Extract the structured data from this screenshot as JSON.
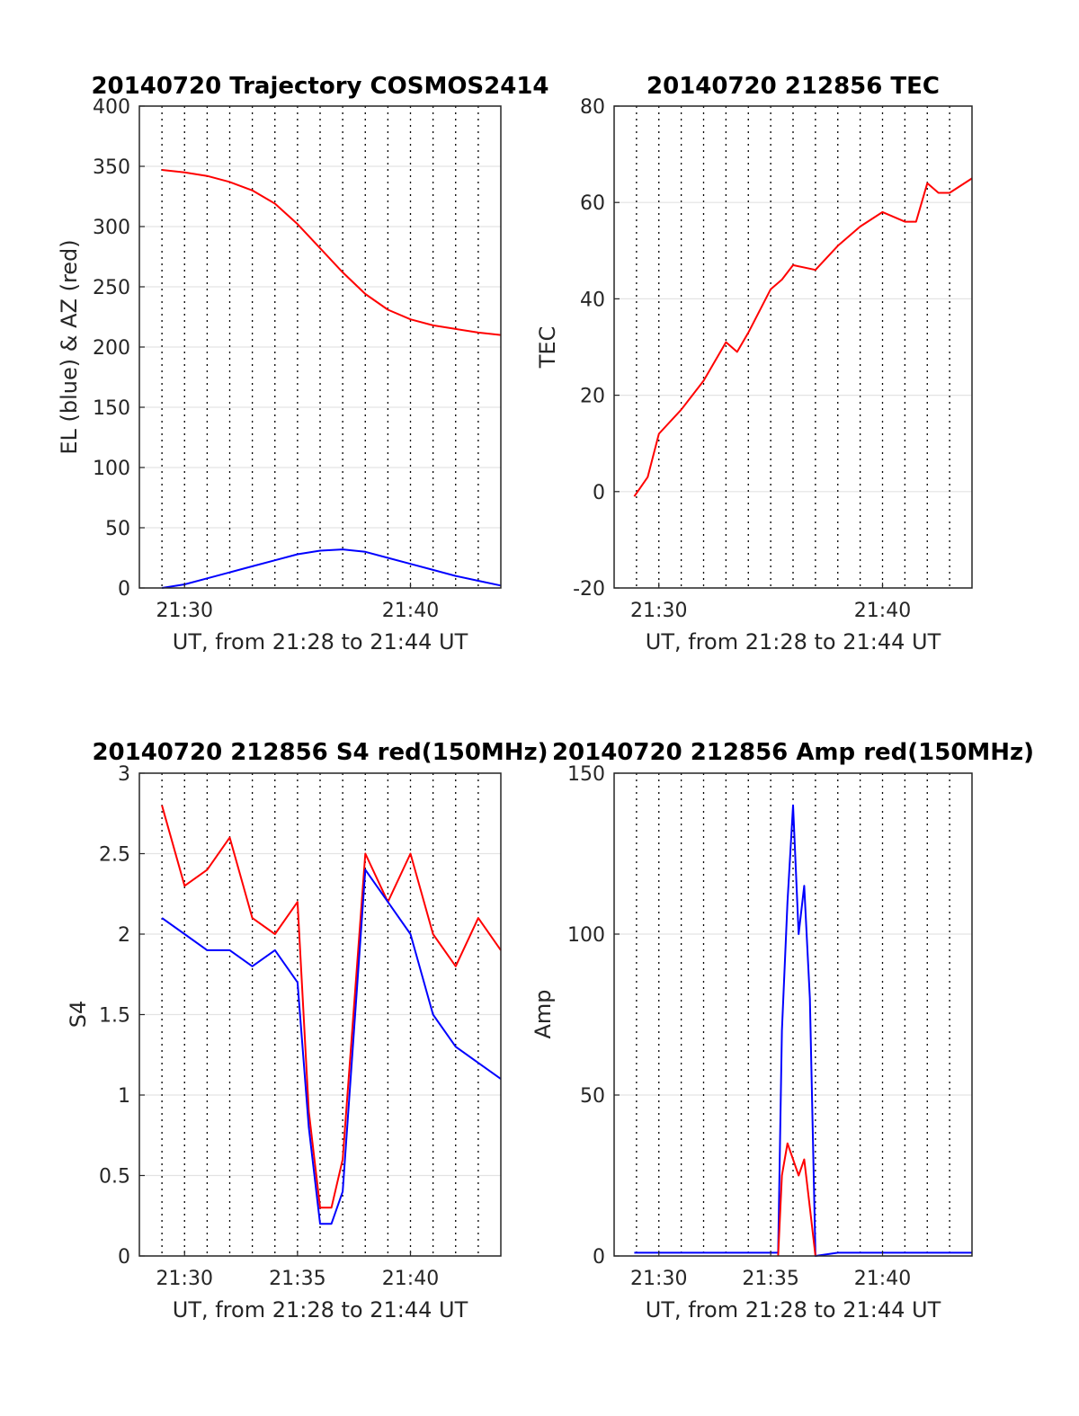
{
  "chart_data": [
    {
      "type": "line",
      "title": "20140720 Trajectory COSMOS2414",
      "xlabel": "UT, from 21:28 to 21:44 UT",
      "ylabel": "EL (blue) & AZ (red)",
      "xlim": [
        "21:28",
        "21:44"
      ],
      "ylim": [
        0,
        400
      ],
      "xticks": [
        "21:30",
        "21:40"
      ],
      "yticks": [
        0,
        50,
        100,
        150,
        200,
        250,
        300,
        350,
        400
      ],
      "grid": true,
      "series": [
        {
          "color": "#ff0000",
          "x": [
            "21:29",
            "21:30",
            "21:31",
            "21:32",
            "21:33",
            "21:34",
            "21:35",
            "21:36",
            "21:37",
            "21:38",
            "21:39",
            "21:40",
            "21:41",
            "21:42",
            "21:43",
            "21:44"
          ],
          "y": [
            347,
            345,
            342,
            337,
            330,
            319,
            302,
            282,
            262,
            244,
            231,
            223,
            218,
            215,
            212,
            210
          ]
        },
        {
          "color": "#0000ff",
          "x": [
            "21:29",
            "21:30",
            "21:31",
            "21:32",
            "21:33",
            "21:34",
            "21:35",
            "21:36",
            "21:37",
            "21:38",
            "21:39",
            "21:40",
            "21:41",
            "21:42",
            "21:43",
            "21:44"
          ],
          "y": [
            0,
            3,
            8,
            13,
            18,
            23,
            28,
            31,
            32,
            30,
            25,
            20,
            15,
            10,
            6,
            2
          ]
        }
      ]
    },
    {
      "type": "line",
      "title": "20140720 212856 TEC",
      "xlabel": "UT, from 21:28 to 21:44 UT",
      "ylabel": "TEC",
      "xlim": [
        "21:28",
        "21:44"
      ],
      "ylim": [
        -20,
        80
      ],
      "xticks": [
        "21:30",
        "21:40"
      ],
      "yticks": [
        -20,
        0,
        20,
        40,
        60,
        80
      ],
      "grid": true,
      "series": [
        {
          "color": "#ff0000",
          "x": [
            "21:28:54",
            "21:29:30",
            "21:30",
            "21:31",
            "21:32",
            "21:33",
            "21:33:30",
            "21:34",
            "21:35",
            "21:35:30",
            "21:36",
            "21:37",
            "21:38",
            "21:39",
            "21:40",
            "21:41",
            "21:41:30",
            "21:42",
            "21:42:30",
            "21:43",
            "21:44"
          ],
          "y": [
            -1,
            3,
            12,
            17,
            23,
            31,
            29,
            33,
            42,
            44,
            47,
            46,
            51,
            55,
            58,
            56,
            56,
            64,
            62,
            62,
            65
          ]
        }
      ]
    },
    {
      "type": "line",
      "title": "20140720 212856 S4 red(150MHz)",
      "xlabel": "UT, from 21:28 to 21:44 UT",
      "ylabel": "S4",
      "xlim": [
        "21:28",
        "21:44"
      ],
      "ylim": [
        0,
        3
      ],
      "xticks": [
        "21:30",
        "21:35",
        "21:40"
      ],
      "yticks": [
        0,
        0.5,
        1,
        1.5,
        2,
        2.5,
        3
      ],
      "grid": true,
      "series": [
        {
          "color": "#ff0000",
          "x": [
            "21:29",
            "21:30",
            "21:31",
            "21:32",
            "21:33",
            "21:34",
            "21:35",
            "21:35:30",
            "21:36",
            "21:36:30",
            "21:37",
            "21:38",
            "21:39",
            "21:40",
            "21:41",
            "21:42",
            "21:43",
            "21:44"
          ],
          "y": [
            2.8,
            2.3,
            2.4,
            2.6,
            2.1,
            2.0,
            2.2,
            0.9,
            0.3,
            0.3,
            0.6,
            2.5,
            2.2,
            2.5,
            2.0,
            1.8,
            2.1,
            1.9
          ]
        },
        {
          "color": "#0000ff",
          "x": [
            "21:29",
            "21:30",
            "21:31",
            "21:32",
            "21:33",
            "21:34",
            "21:35",
            "21:35:30",
            "21:36",
            "21:36:30",
            "21:37",
            "21:38",
            "21:39",
            "21:40",
            "21:41",
            "21:42",
            "21:43",
            "21:44"
          ],
          "y": [
            2.1,
            2.0,
            1.9,
            1.9,
            1.8,
            1.9,
            1.7,
            0.8,
            0.2,
            0.2,
            0.4,
            2.4,
            2.2,
            2.0,
            1.5,
            1.3,
            1.2,
            1.1
          ]
        }
      ]
    },
    {
      "type": "line",
      "title": "20140720 212856 Amp red(150MHz)",
      "xlabel": "UT, from 21:28 to 21:44 UT",
      "ylabel": "Amp",
      "xlim": [
        "21:28",
        "21:44"
      ],
      "ylim": [
        0,
        150
      ],
      "xticks": [
        "21:30",
        "21:35",
        "21:40"
      ],
      "yticks": [
        0,
        50,
        100,
        150
      ],
      "grid": true,
      "series": [
        {
          "color": "#0000ff",
          "x": [
            "21:28:54",
            "21:30",
            "21:32",
            "21:34",
            "21:35:20",
            "21:35:30",
            "21:35:45",
            "21:36",
            "21:36:15",
            "21:36:30",
            "21:36:45",
            "21:37",
            "21:38",
            "21:40",
            "21:42",
            "21:44"
          ],
          "y": [
            1,
            1,
            1,
            1,
            1,
            70,
            110,
            140,
            100,
            115,
            80,
            0,
            1,
            1,
            1,
            1
          ]
        },
        {
          "color": "#ff0000",
          "x": [
            "21:35:20",
            "21:35:30",
            "21:35:45",
            "21:36",
            "21:36:15",
            "21:36:30",
            "21:36:45",
            "21:37"
          ],
          "y": [
            0,
            25,
            35,
            30,
            25,
            30,
            15,
            0
          ]
        }
      ]
    }
  ]
}
